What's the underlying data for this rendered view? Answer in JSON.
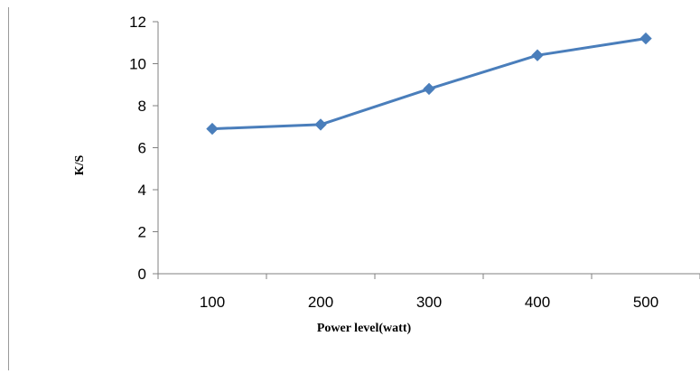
{
  "chart_data": {
    "type": "line",
    "title": "",
    "xlabel": "Power level(watt)",
    "ylabel": "K/S",
    "categories": [
      "100",
      "200",
      "300",
      "400",
      "500"
    ],
    "series": [
      {
        "values": [
          6.9,
          7.1,
          8.8,
          10.4,
          11.2
        ],
        "color": "#4a7ebb",
        "marker": "diamond"
      }
    ],
    "ylim": [
      0,
      12
    ],
    "yticks": [
      0,
      2,
      4,
      6,
      8,
      10,
      12
    ],
    "grid": false,
    "legend": "none"
  }
}
